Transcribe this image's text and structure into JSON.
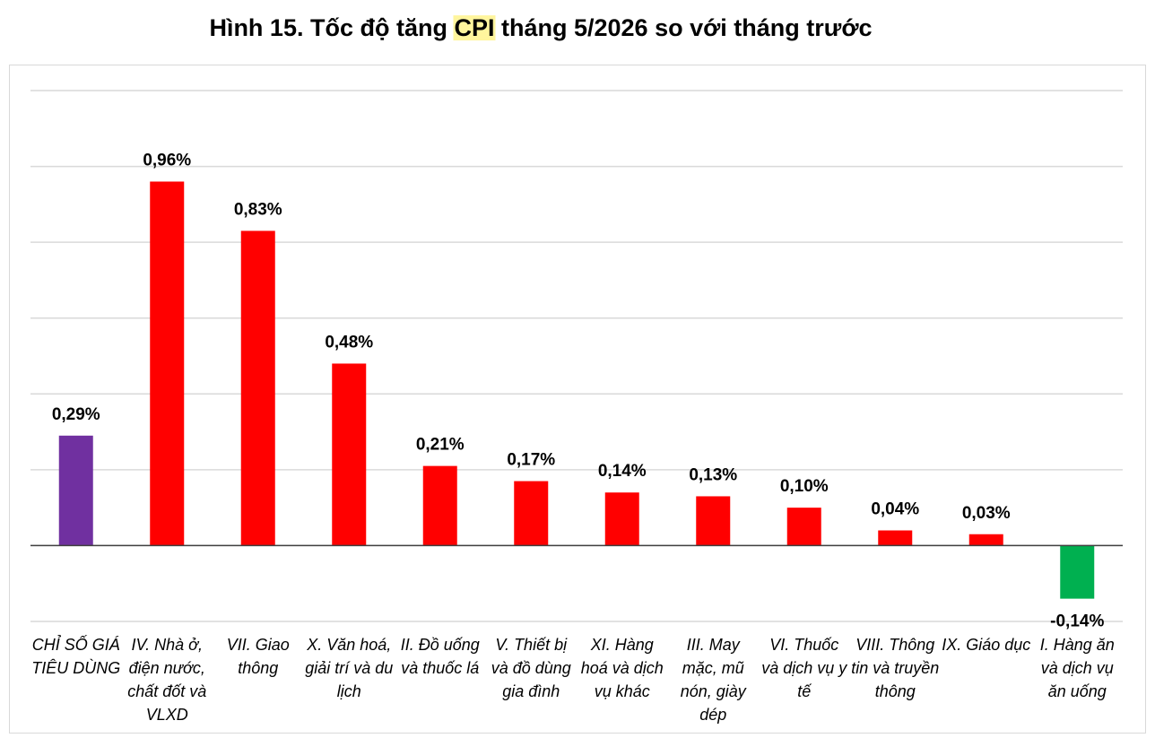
{
  "chart_data": {
    "type": "bar",
    "title": [
      "Hình 15. Tốc độ tăng",
      "CPI",
      "tháng 5/2026 so với tháng trước"
    ],
    "categories": [
      "CHỈ SỐ GIÁ TIÊU DÙNG",
      "IV. Nhà ở, điện nước, chất đốt và VLXD",
      "VII. Giao thông",
      "X. Văn hoá, giải trí và du lịch",
      "II. Đồ uống và thuốc lá",
      "V. Thiết bị và đồ dùng gia đình",
      "XI. Hàng hoá và dịch vụ khác",
      "III. May mặc, mũ nón, giày dép",
      "VI. Thuốc và dịch vụ y tế",
      "VIII. Thông tin và truyền thông",
      "IX. Giáo dục",
      "I. Hàng ăn và dịch vụ ăn uống"
    ],
    "values": [
      0.29,
      0.96,
      0.83,
      0.48,
      0.21,
      0.17,
      0.14,
      0.13,
      0.1,
      0.04,
      0.03,
      -0.14
    ],
    "value_labels": [
      "0,29%",
      "0,96%",
      "0,83%",
      "0,48%",
      "0,21%",
      "0,17%",
      "0,14%",
      "0,13%",
      "0,10%",
      "0,04%",
      "0,03%",
      "-0,14%"
    ],
    "colors": [
      "#7030a0",
      "#ff0000",
      "#ff0000",
      "#ff0000",
      "#ff0000",
      "#ff0000",
      "#ff0000",
      "#ff0000",
      "#ff0000",
      "#ff0000",
      "#ff0000",
      "#00b050"
    ],
    "ylim": [
      -0.2,
      1.2
    ],
    "yticks": [
      -0.2,
      0,
      0.2,
      0.4,
      0.6,
      0.8,
      1.0,
      1.2
    ],
    "grid": true
  }
}
